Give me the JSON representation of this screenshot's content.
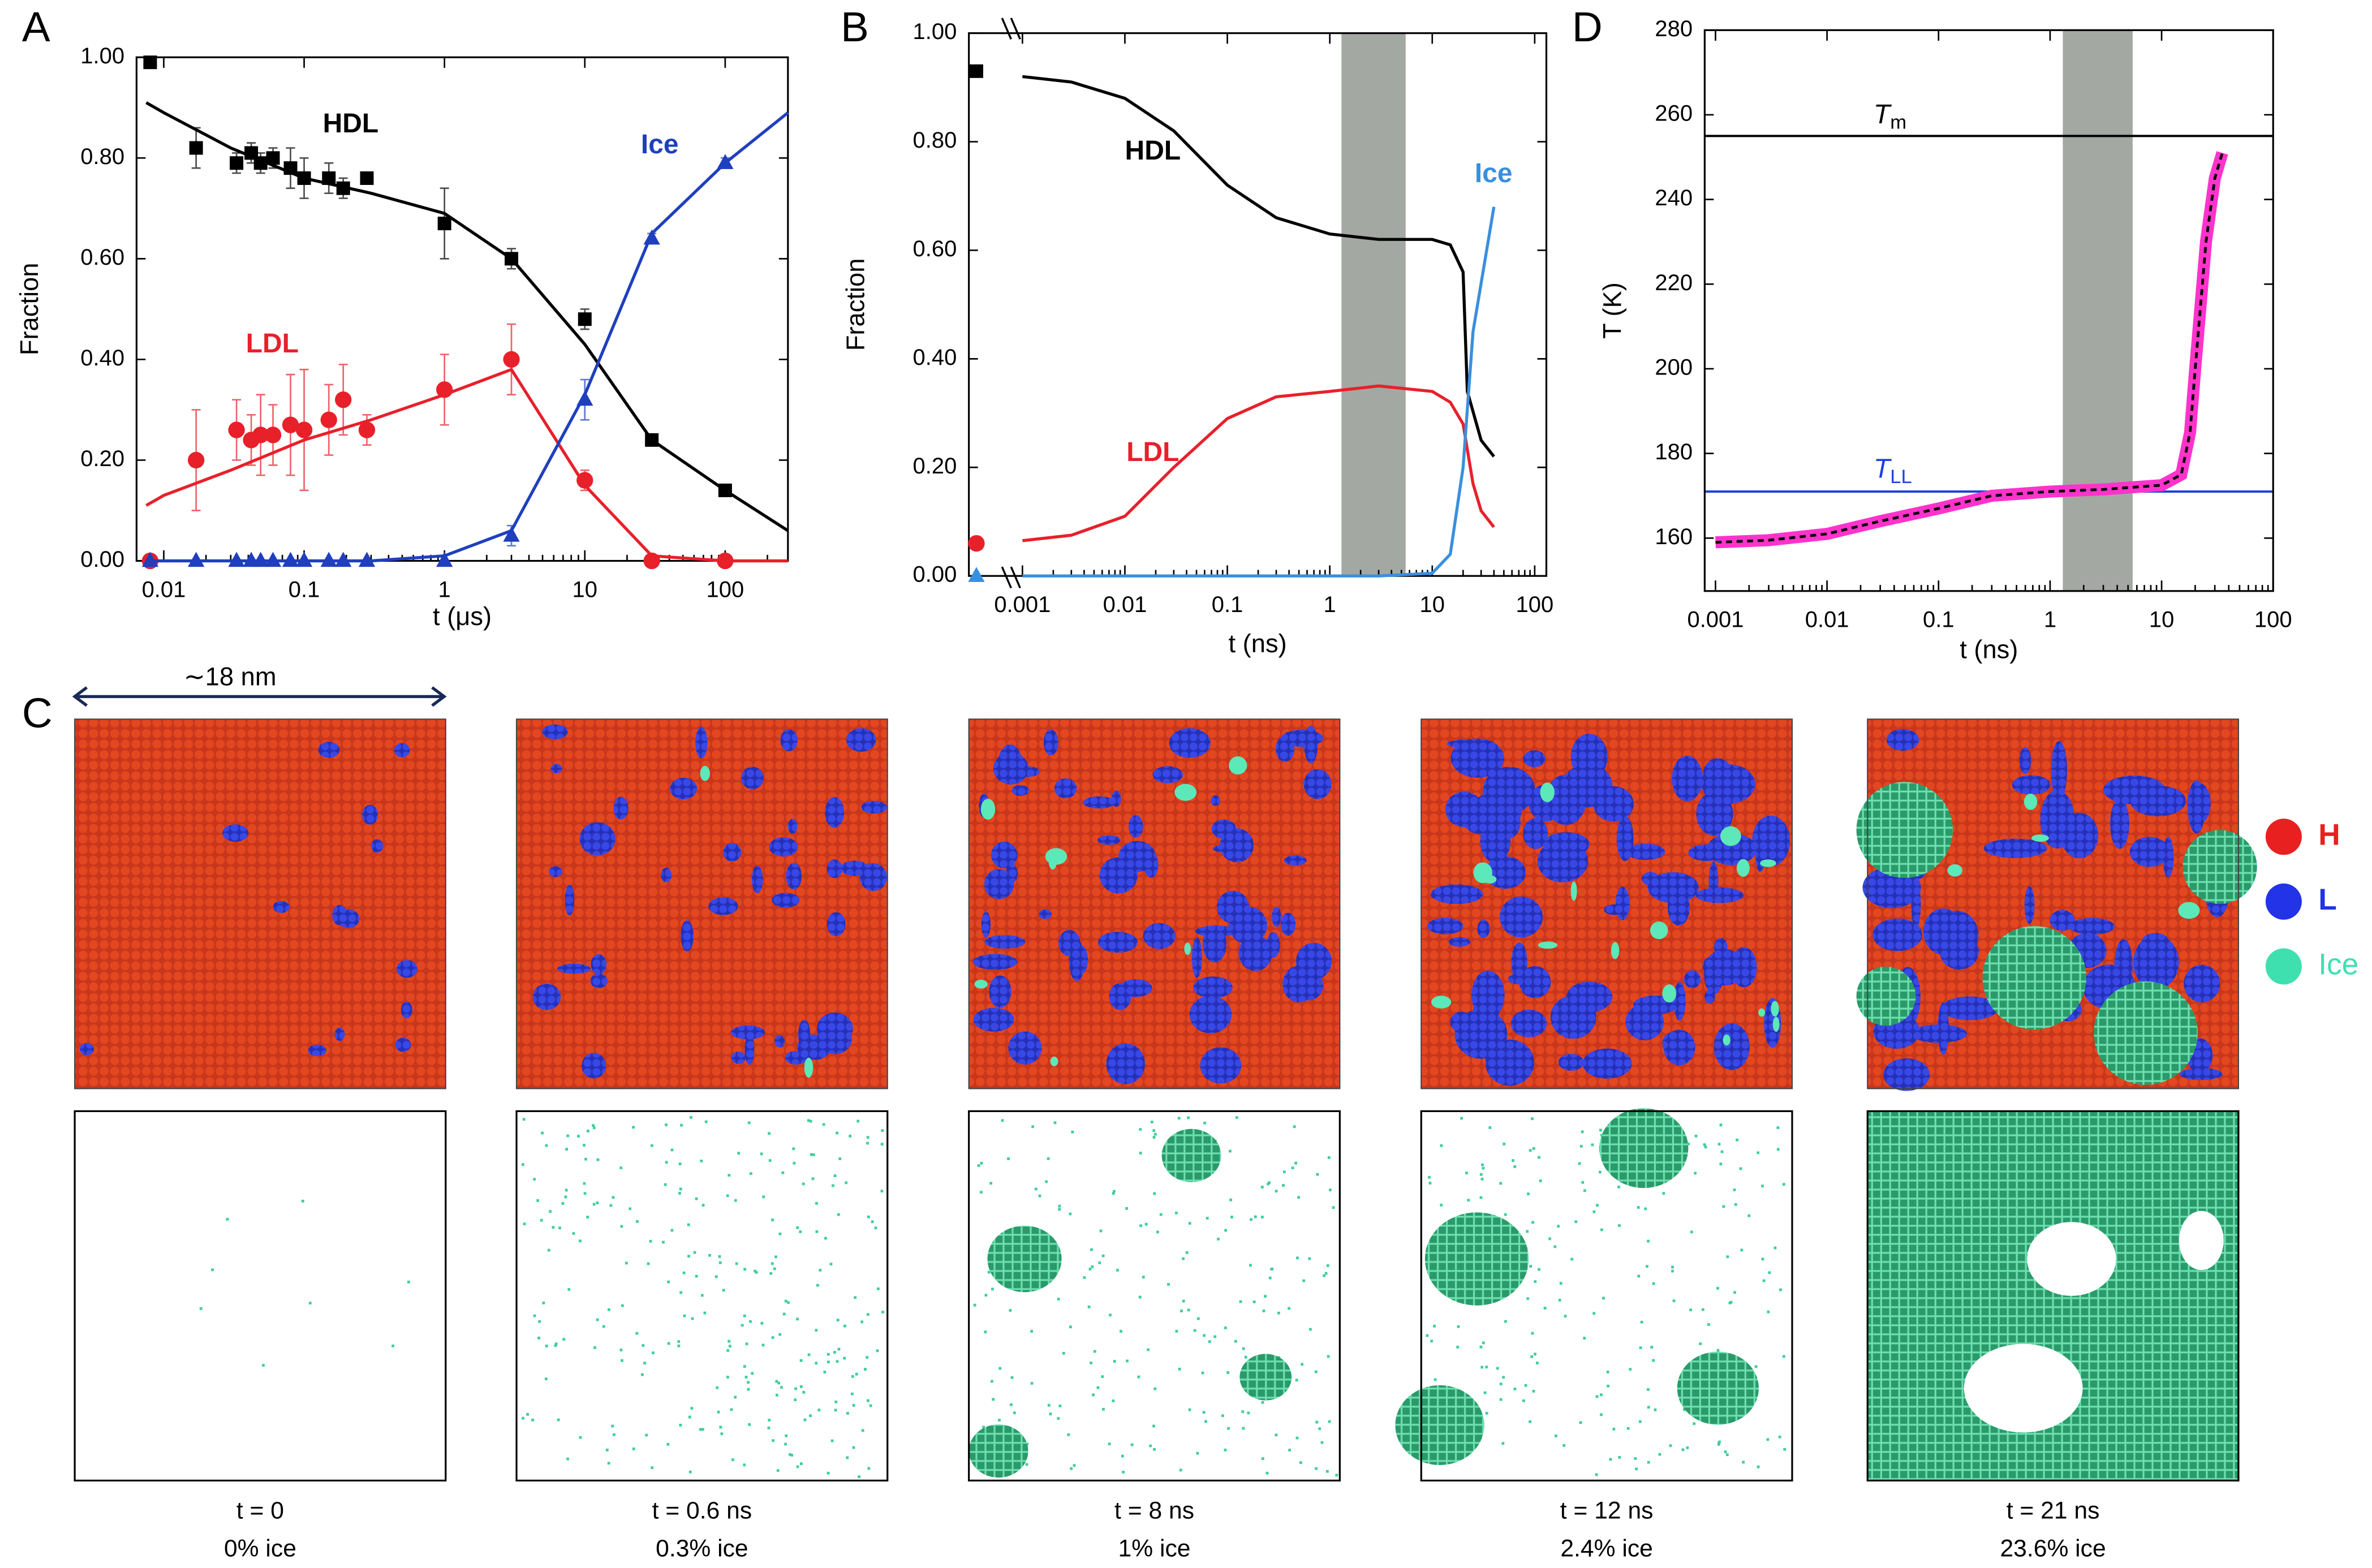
{
  "chart_data": [
    {
      "type": "scatter",
      "label": "A",
      "xscale": "log",
      "xlabel": "t (μs)",
      "ylabel": "Fraction",
      "xlim": [
        0.0064,
        280
      ],
      "xticks": [
        0.01,
        0.1,
        1,
        10,
        100
      ],
      "ylim": [
        0,
        1
      ],
      "yticks": [
        {
          "value": 0,
          "label": "0.00"
        },
        {
          "value": 0.2,
          "label": "0.20"
        },
        {
          "value": 0.4,
          "label": "0.40"
        },
        {
          "value": 0.6,
          "label": "0.60"
        },
        {
          "value": 0.8,
          "label": "0.80"
        },
        {
          "value": 1,
          "label": "1.00"
        }
      ],
      "series": [
        {
          "name": "HDL",
          "color": "#000000",
          "marker": "square",
          "x": [
            0.008,
            0.017,
            0.033,
            0.042,
            0.049,
            0.06,
            0.08,
            0.1,
            0.15,
            0.19,
            0.28,
            1,
            3,
            10,
            30,
            100
          ],
          "values": [
            0.99,
            0.82,
            0.79,
            0.81,
            0.79,
            0.8,
            0.78,
            0.76,
            0.76,
            0.74,
            0.76,
            0.67,
            0.6,
            0.48,
            0.24,
            0.14
          ],
          "errors": [
            0,
            0.04,
            0.02,
            0.02,
            0.02,
            0.02,
            0.04,
            0.04,
            0.03,
            0.02,
            0.01,
            0.07,
            0.02,
            0.02,
            0.01,
            0.01
          ],
          "fit_x": [
            0.0075,
            0.01,
            0.03,
            0.1,
            0.3,
            1,
            3,
            10,
            30,
            100,
            280
          ],
          "fit_values": [
            0.91,
            0.89,
            0.82,
            0.76,
            0.73,
            0.69,
            0.6,
            0.43,
            0.24,
            0.14,
            0.06
          ]
        },
        {
          "name": "LDL",
          "color": "#e8202a",
          "marker": "circle",
          "x": [
            0.008,
            0.017,
            0.033,
            0.042,
            0.049,
            0.06,
            0.08,
            0.1,
            0.15,
            0.19,
            0.28,
            1,
            3,
            10,
            30,
            100
          ],
          "values": [
            0,
            0.2,
            0.26,
            0.24,
            0.25,
            0.25,
            0.27,
            0.26,
            0.28,
            0.32,
            0.26,
            0.34,
            0.4,
            0.16,
            0,
            0
          ],
          "errors": [
            0,
            0.1,
            0.06,
            0.05,
            0.08,
            0.06,
            0.1,
            0.12,
            0.07,
            0.07,
            0.03,
            0.07,
            0.07,
            0.02,
            0,
            0
          ],
          "fit_x": [
            0.0075,
            0.01,
            0.03,
            0.1,
            0.3,
            1,
            3,
            10,
            30,
            100,
            280
          ],
          "fit_values": [
            0.11,
            0.13,
            0.18,
            0.24,
            0.28,
            0.33,
            0.38,
            0.15,
            0.01,
            0,
            0
          ]
        },
        {
          "name": "Ice",
          "color": "#1f3fbf",
          "marker": "triangle",
          "x": [
            0.008,
            0.017,
            0.033,
            0.042,
            0.049,
            0.06,
            0.08,
            0.1,
            0.15,
            0.19,
            0.28,
            1,
            3,
            10,
            30,
            100
          ],
          "values": [
            0,
            0,
            0,
            0,
            0,
            0,
            0,
            0,
            0,
            0,
            0,
            0,
            0.05,
            0.32,
            0.64,
            0.79
          ],
          "errors": [
            0,
            0,
            0,
            0,
            0,
            0,
            0,
            0,
            0,
            0,
            0,
            0,
            0.02,
            0.04,
            0.01,
            0.01
          ],
          "fit_x": [
            0.0075,
            0.01,
            0.03,
            0.1,
            0.3,
            1,
            3,
            10,
            30,
            100,
            280
          ],
          "fit_values": [
            0,
            0,
            0,
            0,
            0,
            0.01,
            0.06,
            0.33,
            0.65,
            0.79,
            0.89
          ]
        }
      ]
    },
    {
      "type": "line",
      "label": "B",
      "xscale": "log",
      "xlabel": "t (ns)",
      "ylabel": "Fraction",
      "xlim": [
        0.0003,
        130
      ],
      "xticks": [
        0.001,
        0.01,
        0.1,
        1,
        10,
        100
      ],
      "ylim": [
        0,
        1
      ],
      "yticks": [
        {
          "value": 0,
          "label": "0.00"
        },
        {
          "value": 0.2,
          "label": "0.20"
        },
        {
          "value": 0.4,
          "label": "0.40"
        },
        {
          "value": 0.6,
          "label": "0.60"
        },
        {
          "value": 0.8,
          "label": "0.80"
        },
        {
          "value": 1,
          "label": "1.00"
        }
      ],
      "shade": [
        1.3,
        5.5
      ],
      "series": [
        {
          "name": "HDL",
          "color": "#000000",
          "marker": "square",
          "initial_values": [
            0.93
          ],
          "x": [
            0.001,
            0.003,
            0.01,
            0.03,
            0.1,
            0.3,
            1,
            3,
            10,
            15,
            20,
            22,
            30,
            40
          ],
          "values": [
            0.92,
            0.91,
            0.88,
            0.82,
            0.72,
            0.66,
            0.63,
            0.62,
            0.62,
            0.61,
            0.56,
            0.34,
            0.25,
            0.22
          ]
        },
        {
          "name": "LDL",
          "color": "#e8202a",
          "marker": "circle",
          "initial_values": [
            0.06
          ],
          "x": [
            0.001,
            0.003,
            0.01,
            0.03,
            0.1,
            0.3,
            1,
            3,
            10,
            15,
            20,
            25,
            30,
            40
          ],
          "values": [
            0.065,
            0.075,
            0.11,
            0.2,
            0.29,
            0.33,
            0.34,
            0.35,
            0.34,
            0.32,
            0.28,
            0.17,
            0.12,
            0.09
          ]
        },
        {
          "name": "Ice",
          "color": "#3a8fdd",
          "marker": "triangle",
          "initial_values": [
            0
          ],
          "x": [
            0.001,
            0.01,
            0.1,
            1,
            3,
            10,
            15,
            20,
            25,
            40
          ],
          "values": [
            0,
            0,
            0,
            0,
            0,
            0.005,
            0.04,
            0.2,
            0.45,
            0.68
          ]
        }
      ]
    },
    {
      "type": "line",
      "label": "D",
      "xscale": "log",
      "xlabel": "t (ns)",
      "ylabel": "T (K)",
      "xlim": [
        0.0008,
        100
      ],
      "xticks": [
        0.001,
        0.01,
        0.1,
        1,
        10,
        100
      ],
      "ylim": [
        147.5,
        280
      ],
      "yticks": [
        160,
        180,
        200,
        220,
        240,
        260,
        280
      ],
      "shade": [
        1.3,
        5.5
      ],
      "hlines": [
        {
          "value": 255,
          "color": "#000000",
          "label": "T",
          "sub": "m"
        },
        {
          "value": 171,
          "color": "#1f3fdf",
          "label": "T",
          "sub": "LL"
        }
      ],
      "series": [
        {
          "color": "#ff33cc",
          "dash_color": "#000000",
          "x": [
            0.001,
            0.003,
            0.01,
            0.03,
            0.1,
            0.3,
            1,
            3,
            10,
            15,
            18,
            20,
            25,
            30,
            35
          ],
          "values": [
            159,
            159.5,
            161,
            164,
            167,
            170,
            171,
            171.5,
            172.5,
            175,
            185,
            200,
            230,
            245,
            251
          ]
        }
      ]
    }
  ],
  "panel_c": {
    "label": "C",
    "scale": "∼18 nm",
    "legend": [
      "H",
      "L",
      "Ice"
    ],
    "snapshots": [
      {
        "time": "t = 0",
        "ice": "0% ice"
      },
      {
        "time": "t = 0.6 ns",
        "ice": "0.3% ice"
      },
      {
        "time": "t = 8 ns",
        "ice": "1% ice"
      },
      {
        "time": "t = 12 ns",
        "ice": "2.4% ice"
      },
      {
        "time": "t = 21 ns",
        "ice": "23.6% ice"
      }
    ]
  }
}
